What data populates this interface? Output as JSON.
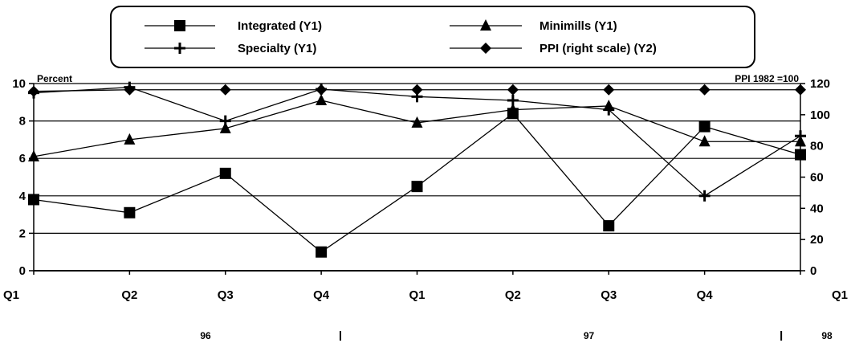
{
  "chart_data": {
    "type": "line",
    "y1_label": "Percent",
    "y2_label": "PPI 1982 =100",
    "categories": [
      "Q1",
      "Q2",
      "Q3",
      "Q4",
      "Q1",
      "Q2",
      "Q3",
      "Q4",
      "Q1"
    ],
    "year_labels": [
      {
        "text": "96",
        "at": 1.5
      },
      {
        "text": "97",
        "at": 5.5
      },
      {
        "text": "98",
        "at": 8
      }
    ],
    "year_separators": [
      3.2,
      7.8
    ],
    "y1_lim": [
      0,
      10
    ],
    "y1_ticks": [
      0,
      2,
      4,
      6,
      8,
      10
    ],
    "y2_lim": [
      0,
      120
    ],
    "y2_ticks": [
      0,
      20,
      40,
      60,
      80,
      100,
      120
    ],
    "grid": true,
    "legend_position": "top-center",
    "series": [
      {
        "name": "Integrated (Y1)",
        "axis": "y1",
        "marker": "square",
        "color": "#000000",
        "values": [
          3.8,
          3.1,
          5.2,
          1.0,
          4.5,
          8.4,
          2.4,
          7.7,
          6.2
        ]
      },
      {
        "name": "Minimills (Y1)",
        "axis": "y1",
        "marker": "triangle",
        "color": "#000000",
        "values": [
          6.1,
          7.0,
          7.6,
          9.1,
          7.9,
          8.6,
          8.8,
          6.9,
          6.9
        ]
      },
      {
        "name": "Specialty (Y1)",
        "axis": "y1",
        "marker": "plus",
        "color": "#000000",
        "values": [
          9.5,
          9.8,
          8.0,
          9.7,
          9.3,
          9.1,
          8.6,
          4.0,
          7.2
        ]
      },
      {
        "name": "PPI (right scale) (Y2)",
        "axis": "y2",
        "marker": "diamond",
        "color": "#000000",
        "values": [
          115,
          116,
          116,
          116,
          116,
          116,
          116,
          116,
          116
        ]
      }
    ]
  }
}
